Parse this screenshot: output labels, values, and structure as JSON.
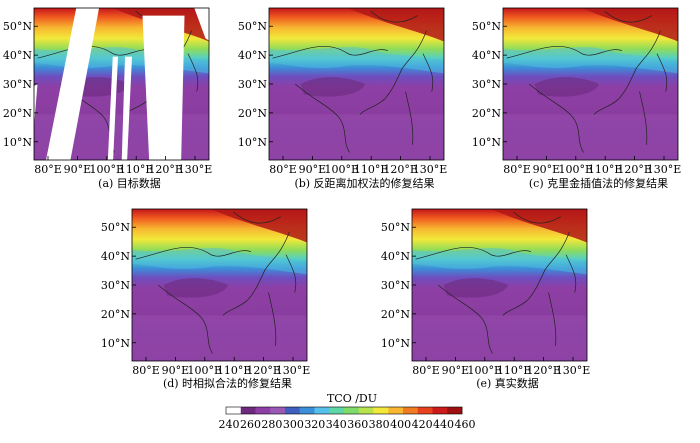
{
  "chart_data": {
    "type": "heatmap",
    "colorbar": {
      "title": "TCO /DU",
      "min": 240,
      "max": 460,
      "ticks": [
        240,
        260,
        280,
        300,
        320,
        340,
        360,
        380,
        400,
        420,
        440,
        460
      ],
      "colors": [
        "#ffffff",
        "#6e2a7e",
        "#8e3fa5",
        "#9b59b6",
        "#3f5fbf",
        "#3b8fd9",
        "#55c1ea",
        "#5fd6a8",
        "#7fdc6a",
        "#b8e34d",
        "#f2e83a",
        "#f7b731",
        "#f17b23",
        "#e8411e",
        "#cc1b1b",
        "#9e1010"
      ]
    },
    "xticks": [
      "80°E",
      "90°E",
      "100°E",
      "110°E",
      "120°E",
      "130°E"
    ],
    "yticks": [
      "10°N",
      "20°N",
      "30°N",
      "40°N",
      "50°N"
    ],
    "panels": [
      {
        "id": "a",
        "caption": "(a) 目标数据",
        "gaps": true
      },
      {
        "id": "b",
        "caption": "(b) 反距离加权法的修复结果",
        "gaps": false
      },
      {
        "id": "c",
        "caption": "(c) 克里金插值法的修复结果",
        "gaps": false
      },
      {
        "id": "d",
        "caption": "(d) 时相拟合法的修复结果",
        "gaps": false
      },
      {
        "id": "e",
        "caption": "(e) 真实数据",
        "gaps": false
      }
    ]
  }
}
